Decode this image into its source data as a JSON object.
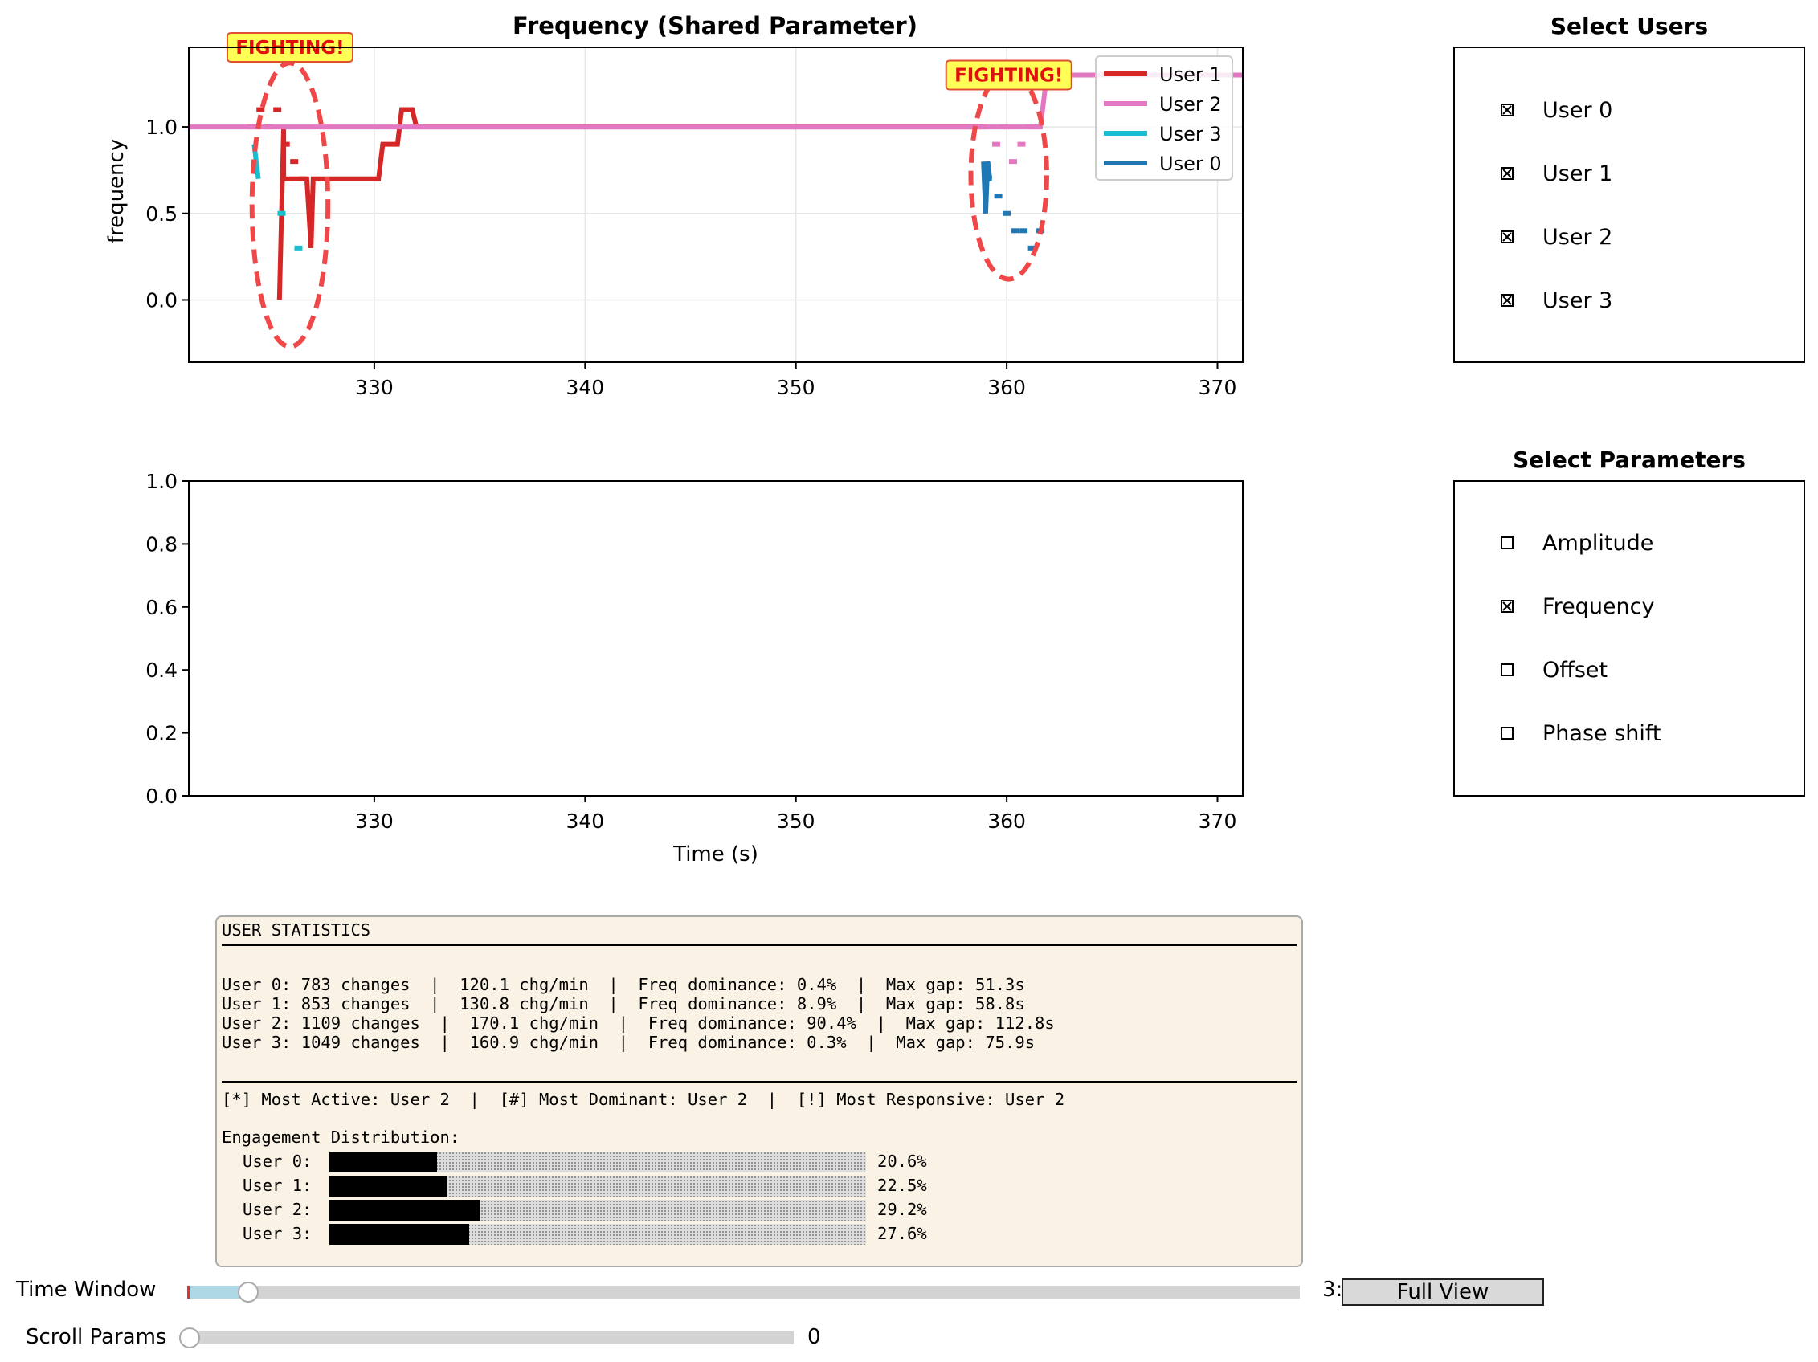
{
  "chart_data": [
    {
      "type": "line",
      "title": "Frequency (Shared Parameter)",
      "xlabel": "",
      "ylabel": "frequency",
      "xlim": [
        321.2,
        371.2
      ],
      "ylim": [
        -0.36,
        1.46
      ],
      "xticks": [
        "330",
        "340",
        "350",
        "360",
        "370"
      ],
      "yticks": [
        "0.0",
        "0.5",
        "1.0"
      ],
      "grid": true,
      "legend_position": "top-right",
      "series": [
        {
          "name": "User 1",
          "color": "#d62728",
          "style": "solid",
          "x": [
            325.5,
            325.5,
            325.7,
            325.7,
            326.8,
            326.8,
            327.0,
            327.1,
            327.3,
            327.4,
            330.2,
            330.4,
            331.1,
            331.3,
            331.8,
            332.0,
            359.0
          ],
          "y": [
            0.0,
            0.0,
            1.0,
            0.7,
            0.7,
            0.7,
            0.3,
            0.7,
            0.7,
            0.7,
            0.7,
            0.9,
            0.9,
            1.1,
            1.1,
            1.0,
            1.0
          ]
        },
        {
          "name": "User 1 dashes",
          "color": "#d62728",
          "style": "dashed",
          "x": [
            324.2,
            324.6,
            325.0,
            325.4,
            325.8,
            326.2,
            326.6
          ],
          "y": [
            1.0,
            1.1,
            1.0,
            1.1,
            0.9,
            0.8,
            0.7
          ]
        },
        {
          "name": "User 2",
          "color": "#e377c2",
          "style": "solid",
          "x": [
            321.2,
            324.2,
            361.6,
            361.9,
            362.2,
            371.2
          ],
          "y": [
            1.0,
            1.0,
            1.0,
            1.3,
            1.3,
            1.3
          ]
        },
        {
          "name": "User 2 dashes",
          "color": "#e377c2",
          "style": "dashed",
          "x": [
            359.5,
            359.9,
            360.3,
            360.7,
            361.1,
            361.5
          ],
          "y": [
            0.9,
            1.0,
            0.8,
            0.9,
            1.0,
            1.0
          ]
        },
        {
          "name": "User 3",
          "color": "#17becf",
          "style": "solid",
          "x": [
            324.3,
            324.5
          ],
          "y": [
            0.9,
            0.7
          ]
        },
        {
          "name": "User 3 dashes",
          "color": "#17becf",
          "style": "dashed",
          "x": [
            325.6,
            326.4
          ],
          "y": [
            0.5,
            0.3
          ]
        },
        {
          "name": "User 0",
          "color": "#1f77b4",
          "style": "solid",
          "x": [
            358.9,
            359.0,
            359.1,
            359.2,
            359.3
          ],
          "y": [
            0.8,
            0.5,
            0.8,
            0.7,
            0.7
          ]
        },
        {
          "name": "User 0 dashes",
          "color": "#1f77b4",
          "style": "dashed",
          "x": [
            359.6,
            360.0,
            360.4,
            360.8,
            361.2,
            361.6
          ],
          "y": [
            0.6,
            0.5,
            0.4,
            0.4,
            0.3,
            0.4
          ]
        }
      ],
      "annotations": [
        {
          "text": "FIGHTING!",
          "x": 326.0,
          "y": 1.46,
          "ellipse": {
            "cx": 326.0,
            "cy": 0.55,
            "rx": 1.8,
            "ry": 0.82
          }
        },
        {
          "text": "FIGHTING!",
          "x": 360.1,
          "y": 1.3,
          "ellipse": {
            "cx": 360.1,
            "cy": 0.72,
            "rx": 1.8,
            "ry": 0.6
          }
        }
      ]
    },
    {
      "type": "line",
      "title": "",
      "xlabel": "Time (s)",
      "ylabel": "",
      "xlim": [
        321.2,
        371.2
      ],
      "ylim": [
        0.0,
        1.0
      ],
      "xticks": [
        "330",
        "340",
        "350",
        "360",
        "370"
      ],
      "yticks": [
        "0.0",
        "0.2",
        "0.4",
        "0.6",
        "0.8",
        "1.0"
      ],
      "grid": false,
      "series": []
    }
  ],
  "legend": [
    {
      "label": "User 1",
      "color": "#d62728"
    },
    {
      "label": "User 2",
      "color": "#e377c2"
    },
    {
      "label": "User 3",
      "color": "#17becf"
    },
    {
      "label": "User 0",
      "color": "#1f77b4"
    }
  ],
  "users_panel": {
    "title": "Select Users",
    "items": [
      {
        "label": "User 0",
        "checked": true
      },
      {
        "label": "User 1",
        "checked": true
      },
      {
        "label": "User 2",
        "checked": true
      },
      {
        "label": "User 3",
        "checked": true
      }
    ]
  },
  "params_panel": {
    "title": "Select Parameters",
    "items": [
      {
        "label": "Amplitude",
        "checked": false
      },
      {
        "label": "Frequency",
        "checked": true
      },
      {
        "label": "Offset",
        "checked": false
      },
      {
        "label": "Phase shift",
        "checked": false
      }
    ]
  },
  "stats": {
    "header": "USER STATISTICS",
    "lines": [
      "User 0: 783 changes  |  120.1 chg/min  |  Freq dominance: 0.4%  |  Max gap: 51.3s",
      "User 1: 853 changes  |  130.8 chg/min  |  Freq dominance: 8.9%  |  Max gap: 58.8s",
      "User 2: 1109 changes  |  170.1 chg/min  |  Freq dominance: 90.4%  |  Max gap: 112.8s",
      "User 3: 1049 changes  |  160.9 chg/min  |  Freq dominance: 0.3%  |  Max gap: 75.9s"
    ],
    "summary": "[*] Most Active: User 2  |  [#] Most Dominant: User 2  |  [!] Most Responsive: User 2",
    "distribution_title": "Engagement Distribution:",
    "distribution": [
      {
        "label": "User 0:",
        "percent_text": "20.6%",
        "fraction": 0.2
      },
      {
        "label": "User 1:",
        "percent_text": "22.5%",
        "fraction": 0.22
      },
      {
        "label": "User 2:",
        "percent_text": "29.2%",
        "fraction": 0.28
      },
      {
        "label": "User 3:",
        "percent_text": "27.6%",
        "fraction": 0.26
      }
    ]
  },
  "controls": {
    "time_window_label": "Time Window",
    "time_window_value_text": "3:",
    "time_window_fraction": 0.053,
    "full_view_label": "Full View",
    "scroll_params_label": "Scroll Params",
    "scroll_params_value_text": "0",
    "scroll_params_fraction": 0.0
  }
}
